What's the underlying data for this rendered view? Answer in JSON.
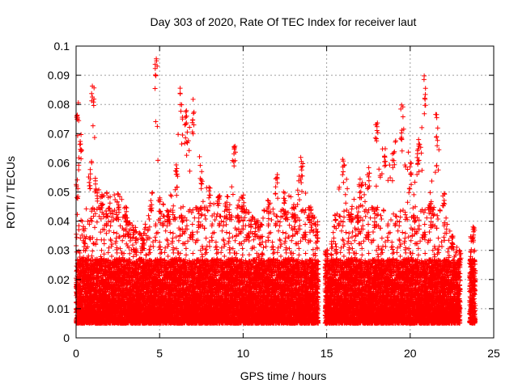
{
  "chart_data": {
    "type": "scatter",
    "title": "Day 303 of 2020, Rate Of TEC Index for receiver laut",
    "xlabel": "GPS time / hours",
    "ylabel": "ROTI / TECUs",
    "xlim": [
      0,
      25
    ],
    "ylim": [
      0,
      0.1
    ],
    "x_ticks": [
      "0",
      "5",
      "10",
      "15",
      "20",
      "25"
    ],
    "y_ticks": [
      "0",
      "0.01",
      "0.02",
      "0.03",
      "0.04",
      "0.05",
      "0.06",
      "0.07",
      "0.08",
      "0.09",
      "0.1"
    ],
    "grid": true,
    "marker": "plus",
    "color": "#ff0000",
    "data_gap_hours": [
      14.5,
      14.9
    ],
    "upper_envelope": [
      [
        0.05,
        0.055
      ],
      [
        0.1,
        0.083
      ],
      [
        0.3,
        0.07
      ],
      [
        0.5,
        0.035
      ],
      [
        0.8,
        0.06
      ],
      [
        1.0,
        0.087
      ],
      [
        1.2,
        0.055
      ],
      [
        1.5,
        0.052
      ],
      [
        2.0,
        0.05
      ],
      [
        2.5,
        0.05
      ],
      [
        3.0,
        0.045
      ],
      [
        3.5,
        0.038
      ],
      [
        4.0,
        0.035
      ],
      [
        4.5,
        0.05
      ],
      [
        4.8,
        0.096
      ],
      [
        5.0,
        0.048
      ],
      [
        5.5,
        0.045
      ],
      [
        6.0,
        0.06
      ],
      [
        6.3,
        0.088
      ],
      [
        6.6,
        0.078
      ],
      [
        7.0,
        0.082
      ],
      [
        7.5,
        0.06
      ],
      [
        8.0,
        0.052
      ],
      [
        8.5,
        0.05
      ],
      [
        9.0,
        0.048
      ],
      [
        9.5,
        0.066
      ],
      [
        10.0,
        0.05
      ],
      [
        10.5,
        0.042
      ],
      [
        11.0,
        0.04
      ],
      [
        11.5,
        0.05
      ],
      [
        12.0,
        0.056
      ],
      [
        12.5,
        0.05
      ],
      [
        13.0,
        0.048
      ],
      [
        13.5,
        0.063
      ],
      [
        14.0,
        0.045
      ],
      [
        14.4,
        0.04
      ],
      [
        15.0,
        0.03
      ],
      [
        15.5,
        0.043
      ],
      [
        16.0,
        0.062
      ],
      [
        16.5,
        0.045
      ],
      [
        17.0,
        0.055
      ],
      [
        17.5,
        0.06
      ],
      [
        18.0,
        0.074
      ],
      [
        18.5,
        0.067
      ],
      [
        19.0,
        0.065
      ],
      [
        19.5,
        0.08
      ],
      [
        20.0,
        0.06
      ],
      [
        20.5,
        0.07
      ],
      [
        20.9,
        0.09
      ],
      [
        21.2,
        0.05
      ],
      [
        21.6,
        0.077
      ],
      [
        22.0,
        0.05
      ],
      [
        22.5,
        0.035
      ],
      [
        23.0,
        0.03
      ],
      [
        23.8,
        0.038
      ]
    ]
  }
}
